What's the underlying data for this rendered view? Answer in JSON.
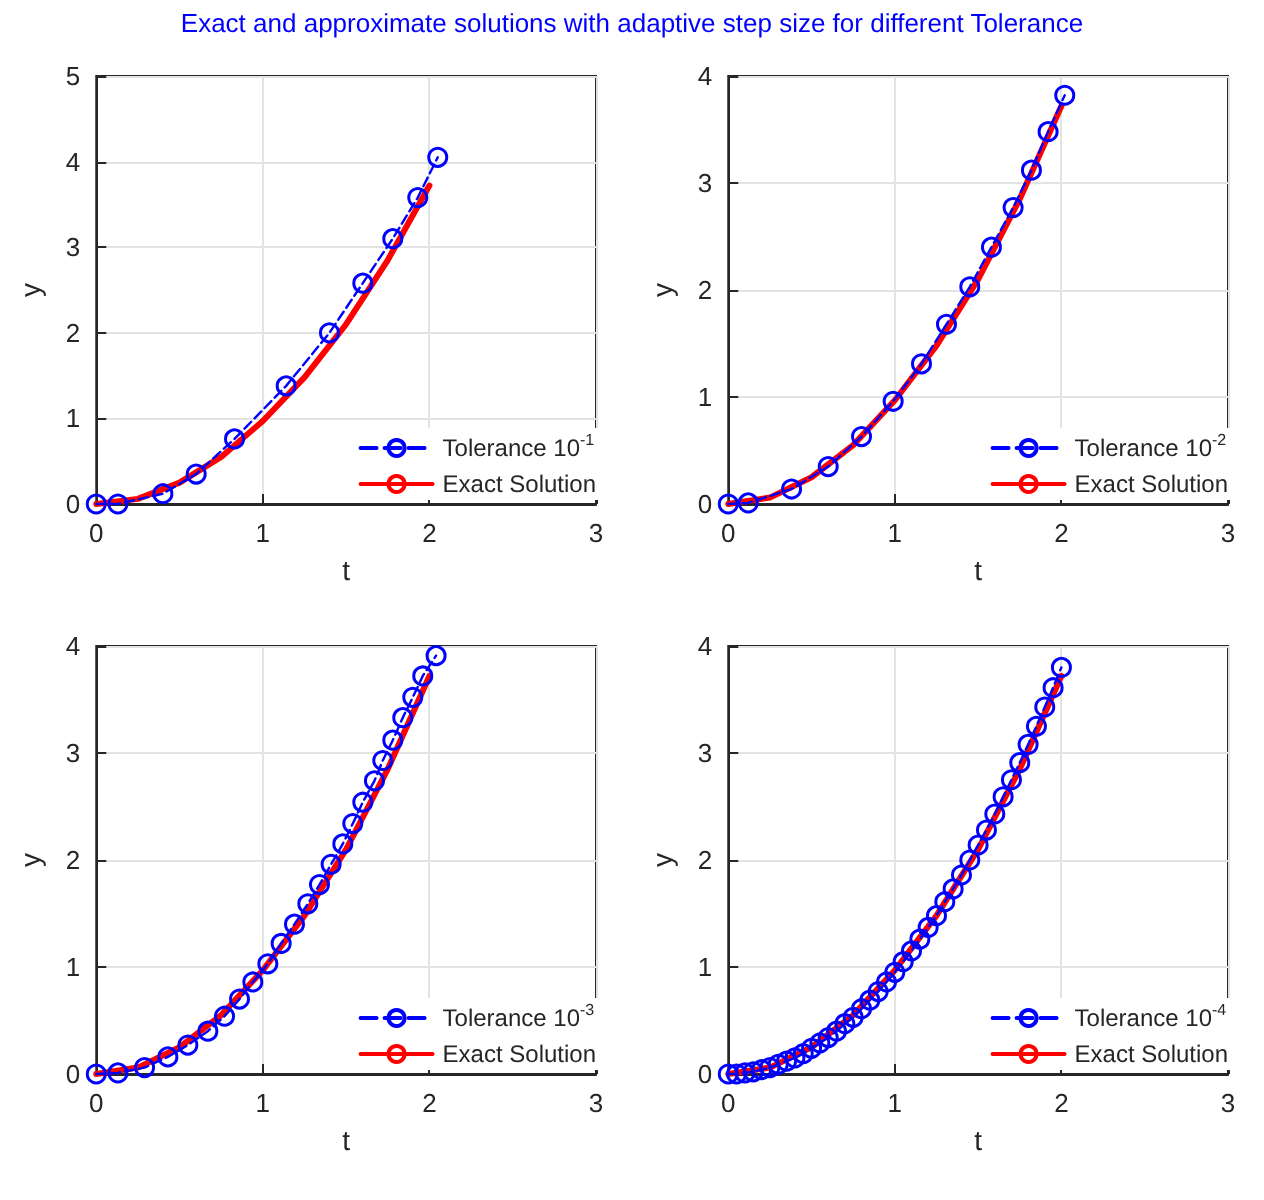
{
  "chart_data": [
    {
      "type": "line",
      "title": "Exact and approximate solutions with adaptive step size for different Tolerance",
      "xlabel": "t",
      "ylabel": "y",
      "xlim": [
        0,
        3
      ],
      "xticks": [
        0,
        1,
        2,
        3
      ],
      "ylim": [
        0,
        5
      ],
      "yticks": [
        0,
        1,
        2,
        3,
        4,
        5
      ],
      "grid": true,
      "legend": "bottom right",
      "series": [
        {
          "name": "Tolerance 10$^{-1}$",
          "color": "#0000ff",
          "marker": "circle",
          "line_style": "dashed",
          "x": [
            0,
            0.13,
            0.4,
            0.6,
            0.83,
            1.14,
            1.4,
            1.6,
            1.78,
            1.93,
            2.05
          ],
          "values": [
            0,
            0,
            0.12,
            0.35,
            0.76,
            1.38,
            2.0,
            2.58,
            3.1,
            3.58,
            4.05
          ]
        },
        {
          "name": "Exact Solution",
          "color": "#ff0000",
          "marker": "none",
          "line_style": "solid",
          "x": [
            0,
            0.25,
            0.5,
            0.75,
            1,
            1.25,
            1.5,
            1.75,
            2
          ],
          "values": [
            0,
            0.06,
            0.25,
            0.55,
            0.97,
            1.48,
            2.1,
            2.85,
            3.72
          ]
        }
      ]
    },
    {
      "type": "line",
      "xlabel": "t",
      "ylabel": "y",
      "xlim": [
        0,
        3
      ],
      "xticks": [
        0,
        1,
        2,
        3
      ],
      "ylim": [
        0,
        4
      ],
      "yticks": [
        0,
        1,
        2,
        3,
        4
      ],
      "grid": true,
      "legend": "bottom right",
      "series": [
        {
          "name": "Tolerance 10$^{-2}$",
          "color": "#0000ff",
          "marker": "circle",
          "line_style": "dashed",
          "x": [
            0,
            0.12,
            0.38,
            0.6,
            0.8,
            0.99,
            1.16,
            1.31,
            1.45,
            1.58,
            1.71,
            1.82,
            1.92,
            2.02
          ],
          "values": [
            0,
            0.01,
            0.14,
            0.35,
            0.63,
            0.96,
            1.31,
            1.68,
            2.03,
            2.4,
            2.77,
            3.12,
            3.48,
            3.82
          ]
        },
        {
          "name": "Exact Solution",
          "color": "#ff0000",
          "marker": "none",
          "line_style": "solid",
          "x": [
            0,
            0.25,
            0.5,
            0.75,
            1,
            1.25,
            1.5,
            1.75,
            2
          ],
          "values": [
            0,
            0.06,
            0.25,
            0.55,
            0.97,
            1.48,
            2.1,
            2.85,
            3.72
          ]
        }
      ]
    },
    {
      "type": "line",
      "xlabel": "t",
      "ylabel": "y",
      "xlim": [
        0,
        3
      ],
      "xticks": [
        0,
        1,
        2,
        3
      ],
      "ylim": [
        0,
        4
      ],
      "yticks": [
        0,
        1,
        2,
        3,
        4
      ],
      "grid": true,
      "legend": "bottom right",
      "series": [
        {
          "name": "Tolerance 10$^{-3}$",
          "color": "#0000ff",
          "marker": "circle",
          "line_style": "dashed",
          "x": [
            0,
            0.13,
            0.29,
            0.43,
            0.55,
            0.67,
            0.77,
            0.86,
            0.94,
            1.03,
            1.11,
            1.19,
            1.27,
            1.34,
            1.41,
            1.48,
            1.54,
            1.6,
            1.67,
            1.72,
            1.78,
            1.84,
            1.9,
            1.96,
            2.04
          ],
          "values": [
            0,
            0.01,
            0.06,
            0.16,
            0.27,
            0.4,
            0.54,
            0.7,
            0.86,
            1.03,
            1.22,
            1.4,
            1.59,
            1.77,
            1.96,
            2.15,
            2.34,
            2.54,
            2.74,
            2.93,
            3.12,
            3.33,
            3.52,
            3.72,
            3.91
          ]
        },
        {
          "name": "Exact Solution",
          "color": "#ff0000",
          "marker": "none",
          "line_style": "solid",
          "x": [
            0,
            0.25,
            0.5,
            0.75,
            1,
            1.25,
            1.5,
            1.75,
            2
          ],
          "values": [
            0,
            0.06,
            0.25,
            0.55,
            0.97,
            1.48,
            2.1,
            2.85,
            3.72
          ]
        }
      ]
    },
    {
      "type": "line",
      "xlabel": "t",
      "ylabel": "y",
      "xlim": [
        0,
        3
      ],
      "xticks": [
        0,
        1,
        2,
        3
      ],
      "ylim": [
        0,
        4
      ],
      "yticks": [
        0,
        1,
        2,
        3,
        4
      ],
      "grid": true,
      "legend": "bottom right",
      "series": [
        {
          "name": "Tolerance 10$^{-4}$",
          "color": "#0000ff",
          "marker": "circle",
          "line_style": "dashed",
          "x": [
            0,
            0.05,
            0.1,
            0.15,
            0.2,
            0.25,
            0.3,
            0.35,
            0.4,
            0.45,
            0.5,
            0.55,
            0.6,
            0.65,
            0.7,
            0.75,
            0.8,
            0.85,
            0.9,
            0.95,
            1,
            1.05,
            1.1,
            1.15,
            1.2,
            1.25,
            1.3,
            1.35,
            1.4,
            1.45,
            1.5,
            1.55,
            1.6,
            1.65,
            1.7,
            1.75,
            1.8,
            1.85,
            1.9,
            1.95,
            2
          ],
          "values": [
            0,
            0,
            0.01,
            0.02,
            0.04,
            0.06,
            0.09,
            0.12,
            0.15,
            0.19,
            0.24,
            0.29,
            0.34,
            0.4,
            0.47,
            0.53,
            0.61,
            0.69,
            0.77,
            0.86,
            0.95,
            1.05,
            1.15,
            1.26,
            1.37,
            1.48,
            1.61,
            1.73,
            1.86,
            2.0,
            2.14,
            2.28,
            2.43,
            2.59,
            2.75,
            2.91,
            3.08,
            3.25,
            3.43,
            3.61,
            3.8
          ]
        },
        {
          "name": "Exact Solution",
          "color": "#ff0000",
          "marker": "none",
          "line_style": "solid",
          "x": [
            0,
            0.25,
            0.5,
            0.75,
            1,
            1.25,
            1.5,
            1.75,
            2
          ],
          "values": [
            0,
            0.06,
            0.25,
            0.55,
            0.97,
            1.48,
            2.1,
            2.85,
            3.72
          ]
        }
      ]
    }
  ]
}
